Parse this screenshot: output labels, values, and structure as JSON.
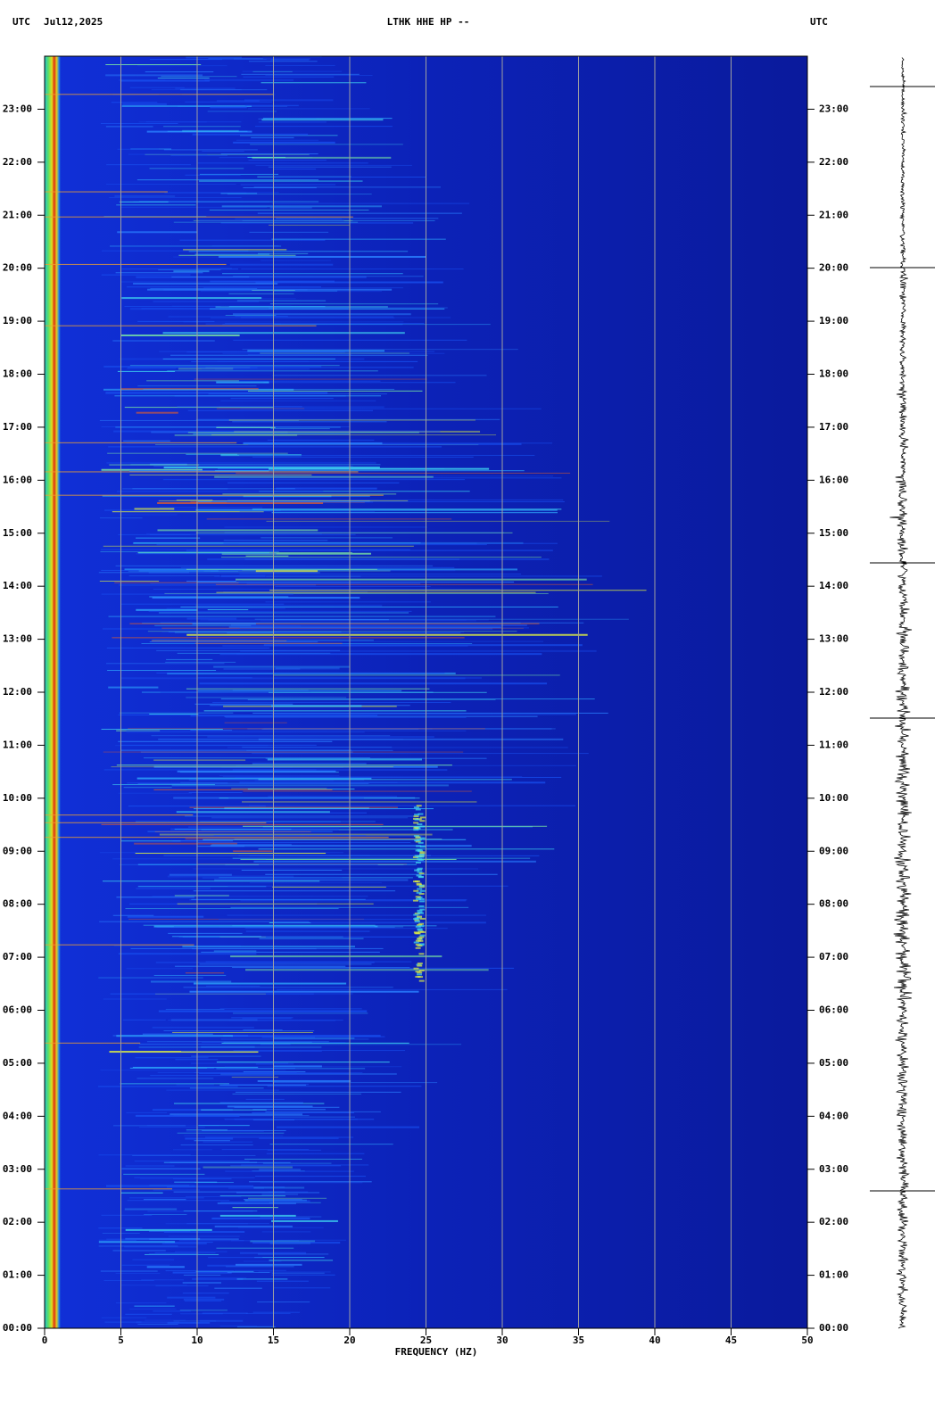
{
  "chart_data": {
    "type": "spectrogram",
    "title": "LTHK HHE HP --",
    "timezone": "UTC",
    "date": "Jul12,2025",
    "xlabel": "FREQUENCY (HZ)",
    "xlim": [
      0,
      50
    ],
    "xticks": [
      0,
      5,
      10,
      15,
      20,
      25,
      30,
      35,
      40,
      45,
      50
    ],
    "ylim": [
      0,
      24
    ],
    "yticks": [
      {
        "value": 0,
        "label": "00:00"
      },
      {
        "value": 1,
        "label": "01:00"
      },
      {
        "value": 2,
        "label": "02:00"
      },
      {
        "value": 3,
        "label": "03:00"
      },
      {
        "value": 4,
        "label": "04:00"
      },
      {
        "value": 5,
        "label": "05:00"
      },
      {
        "value": 6,
        "label": "06:00"
      },
      {
        "value": 7,
        "label": "07:00"
      },
      {
        "value": 8,
        "label": "08:00"
      },
      {
        "value": 9,
        "label": "09:00"
      },
      {
        "value": 10,
        "label": "10:00"
      },
      {
        "value": 11,
        "label": "11:00"
      },
      {
        "value": 12,
        "label": "12:00"
      },
      {
        "value": 13,
        "label": "13:00"
      },
      {
        "value": 14,
        "label": "14:00"
      },
      {
        "value": 15,
        "label": "15:00"
      },
      {
        "value": 16,
        "label": "16:00"
      },
      {
        "value": 17,
        "label": "17:00"
      },
      {
        "value": 18,
        "label": "18:00"
      },
      {
        "value": 19,
        "label": "19:00"
      },
      {
        "value": 20,
        "label": "20:00"
      },
      {
        "value": 21,
        "label": "21:00"
      },
      {
        "value": 22,
        "label": "22:00"
      },
      {
        "value": 23,
        "label": "23:00"
      }
    ],
    "grid": true,
    "grid_color": "#a0a0a0"
  }
}
